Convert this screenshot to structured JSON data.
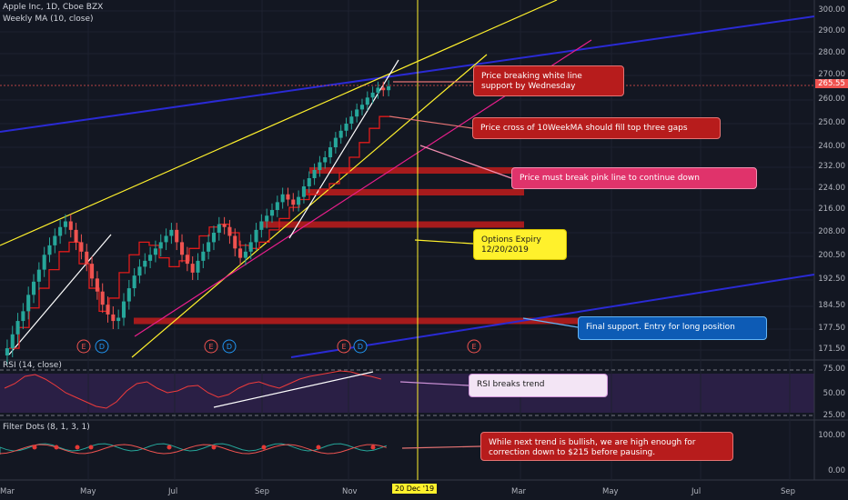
{
  "header": {
    "title": "Apple Inc, 1D, Cboe BZX",
    "ma_label": "Weekly MA (10, close)",
    "rsi_label": "RSI (14, close)",
    "dots_label": "Filter Dots (8, 1, 3, 1)"
  },
  "price_axis": {
    "ticks": [
      "300.00",
      "290.00",
      "280.00",
      "270.00",
      "260.00",
      "250.00",
      "240.00",
      "232.00",
      "224.00",
      "216.00",
      "208.00",
      "200.50",
      "192.50",
      "184.50",
      "177.50",
      "171.50"
    ],
    "last_price": "265.55"
  },
  "rsi_axis": {
    "ticks": [
      "75.00",
      "50.00",
      "25.00"
    ]
  },
  "dots_axis": {
    "ticks": [
      "100.00",
      "0.00"
    ]
  },
  "time_axis": {
    "labels": [
      "Mar",
      "May",
      "Jul",
      "Sep",
      "Nov",
      "Mar",
      "May",
      "Jul",
      "Sep"
    ],
    "highlight": "20 Dec '19"
  },
  "callouts": [
    {
      "text": "Price breaking white line support by Wednesday",
      "color": "#b71c1c"
    },
    {
      "text": "Price cross of 10WeekMA should fill top three gaps",
      "color": "#b71c1c"
    },
    {
      "text": "Price must break pink line to continue down",
      "color": "#e0336b"
    },
    {
      "text": "Options Expiry 12/20/2019",
      "color": "#fff12c"
    },
    {
      "text": "Final support.  Entry for long position",
      "color": "#0d5bb5"
    },
    {
      "text": "RSI breaks trend",
      "color": "#f3e5f5"
    },
    {
      "text": "While next trend is bullish, we are high enough for correction down to $215 before pausing.",
      "color": "#b71c1c"
    }
  ],
  "earnings_markers": [
    {
      "letters": [
        "E",
        "D"
      ]
    },
    {
      "letters": [
        "E",
        "D"
      ]
    },
    {
      "letters": [
        "E",
        "D"
      ]
    },
    {
      "letters": [
        "E"
      ]
    }
  ],
  "chart_data": {
    "type": "candlestick",
    "title": "Apple Inc, 1D, Cboe BZX",
    "x_labels": [
      "Mar",
      "May",
      "Jul",
      "Sep",
      "Nov"
    ],
    "price_close_approx": [
      172,
      176,
      180,
      183,
      188,
      192,
      196,
      201,
      204,
      207,
      210,
      212,
      209,
      205,
      202,
      198,
      193,
      189,
      185,
      182,
      180,
      181,
      186,
      190,
      194,
      197,
      199,
      201,
      203,
      205,
      207,
      209,
      205,
      201,
      198,
      195,
      199,
      202,
      205,
      208,
      211,
      210,
      207,
      203,
      200,
      202,
      205,
      209,
      212,
      214,
      216,
      219,
      222,
      220,
      218,
      221,
      225,
      228,
      231,
      234,
      236,
      240,
      244,
      247,
      250,
      253,
      256,
      258,
      261,
      263,
      265,
      264,
      265.55
    ],
    "weekly_ma_approx": [
      172,
      178,
      184,
      190,
      196,
      202,
      205,
      198,
      190,
      183,
      187,
      195,
      201,
      205,
      204,
      200,
      197,
      199,
      203,
      207,
      210,
      211,
      208,
      204,
      203,
      205,
      209,
      213,
      217,
      220,
      222,
      224,
      226,
      230,
      236,
      242,
      248,
      253
    ],
    "gaps": [
      {
        "from": 232,
        "to": 230.5
      },
      {
        "from": 224,
        "to": 222.5
      },
      {
        "from": 212,
        "to": 210.5
      },
      {
        "from": 181,
        "to": 179.5
      }
    ],
    "last_price": 265.55,
    "rsi": {
      "range": [
        25,
        75
      ],
      "values_approx": [
        55,
        60,
        68,
        70,
        65,
        58,
        50,
        45,
        40,
        35,
        33,
        40,
        52,
        60,
        62,
        55,
        50,
        52,
        57,
        58,
        50,
        45,
        48,
        55,
        60,
        62,
        58,
        55,
        60,
        65,
        68,
        70,
        72,
        74,
        73,
        70,
        68,
        65
      ]
    },
    "filter_dots": {
      "range": [
        0,
        100
      ]
    }
  }
}
